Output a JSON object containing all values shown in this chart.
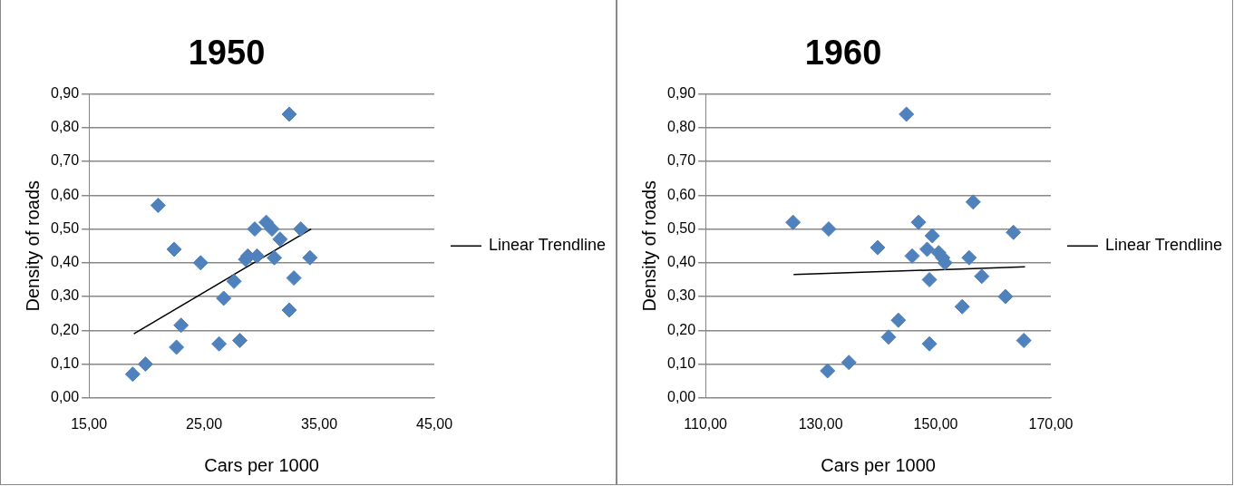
{
  "chart_data": [
    {
      "type": "scatter",
      "title": "1950",
      "xlabel": "Cars per 1000",
      "ylabel": "Density of roads",
      "xlim": [
        15,
        45
      ],
      "xticks": [
        {
          "value": 15,
          "label": "15,00"
        },
        {
          "value": 25,
          "label": "25,00"
        },
        {
          "value": 35,
          "label": "35,00"
        },
        {
          "value": 45,
          "label": "45,00"
        }
      ],
      "ylim": [
        0,
        0.9
      ],
      "yticks": [
        {
          "value": 0,
          "label": "0,00"
        },
        {
          "value": 0.1,
          "label": "0,10"
        },
        {
          "value": 0.2,
          "label": "0,20"
        },
        {
          "value": 0.3,
          "label": "0,30"
        },
        {
          "value": 0.4,
          "label": "0,40"
        },
        {
          "value": 0.5,
          "label": "0,50"
        },
        {
          "value": 0.6,
          "label": "0,60"
        },
        {
          "value": 0.7,
          "label": "0,70"
        },
        {
          "value": 0.8,
          "label": "0,80"
        },
        {
          "value": 0.9,
          "label": "0,90"
        }
      ],
      "grid": "y",
      "legend": "right",
      "series": [
        {
          "type": "scatter",
          "marker": "diamond",
          "color": "#4f81bd",
          "x": [
            18.8,
            19.9,
            21.0,
            22.4,
            22.6,
            23.0,
            24.7,
            26.3,
            26.7,
            27.6,
            28.1,
            28.6,
            28.8,
            29.6,
            29.4,
            30.4,
            30.9,
            31.6,
            31.1,
            32.4,
            32.4,
            32.8,
            33.4,
            34.2
          ],
          "values": [
            0.07,
            0.1,
            0.57,
            0.44,
            0.15,
            0.215,
            0.4,
            0.16,
            0.295,
            0.345,
            0.17,
            0.41,
            0.42,
            0.42,
            0.5,
            0.52,
            0.5,
            0.47,
            0.415,
            0.84,
            0.26,
            0.355,
            0.5,
            0.415
          ]
        },
        {
          "type": "line",
          "name": "Linear Trendline",
          "marker": "none",
          "color": "#000000",
          "x": [
            18.9,
            34.3
          ],
          "values": [
            0.19,
            0.5
          ]
        }
      ]
    },
    {
      "type": "scatter",
      "title": "1960",
      "xlabel": "Cars per 1000",
      "ylabel": "Density of roads",
      "xlim": [
        110,
        170
      ],
      "xticks": [
        {
          "value": 110,
          "label": "110,00"
        },
        {
          "value": 130,
          "label": "130,00"
        },
        {
          "value": 150,
          "label": "150,00"
        },
        {
          "value": 170,
          "label": "170,00"
        }
      ],
      "ylim": [
        0,
        0.9
      ],
      "yticks": [
        {
          "value": 0,
          "label": "0,00"
        },
        {
          "value": 0.1,
          "label": "0,10"
        },
        {
          "value": 0.2,
          "label": "0,20"
        },
        {
          "value": 0.3,
          "label": "0,30"
        },
        {
          "value": 0.4,
          "label": "0,40"
        },
        {
          "value": 0.5,
          "label": "0,50"
        },
        {
          "value": 0.6,
          "label": "0,60"
        },
        {
          "value": 0.7,
          "label": "0,70"
        },
        {
          "value": 0.8,
          "label": "0,80"
        },
        {
          "value": 0.9,
          "label": "0,90"
        }
      ],
      "grid": "y",
      "legend": "right",
      "series": [
        {
          "type": "scatter",
          "marker": "diamond",
          "color": "#4f81bd",
          "x": [
            125.2,
            131.4,
            131.2,
            134.9,
            139.9,
            141.8,
            143.5,
            144.9,
            145.9,
            147.0,
            148.5,
            148.9,
            148.9,
            149.4,
            150.5,
            151.2,
            151.6,
            154.6,
            155.8,
            156.5,
            158.0,
            162.1,
            163.5,
            165.3
          ],
          "values": [
            0.52,
            0.5,
            0.08,
            0.105,
            0.445,
            0.18,
            0.23,
            0.84,
            0.42,
            0.52,
            0.44,
            0.35,
            0.16,
            0.48,
            0.43,
            0.415,
            0.4,
            0.27,
            0.415,
            0.58,
            0.36,
            0.3,
            0.49,
            0.17
          ]
        },
        {
          "type": "line",
          "name": "Linear Trendline",
          "marker": "none",
          "color": "#000000",
          "x": [
            125.3,
            165.5
          ],
          "values": [
            0.365,
            0.388
          ]
        }
      ]
    }
  ]
}
